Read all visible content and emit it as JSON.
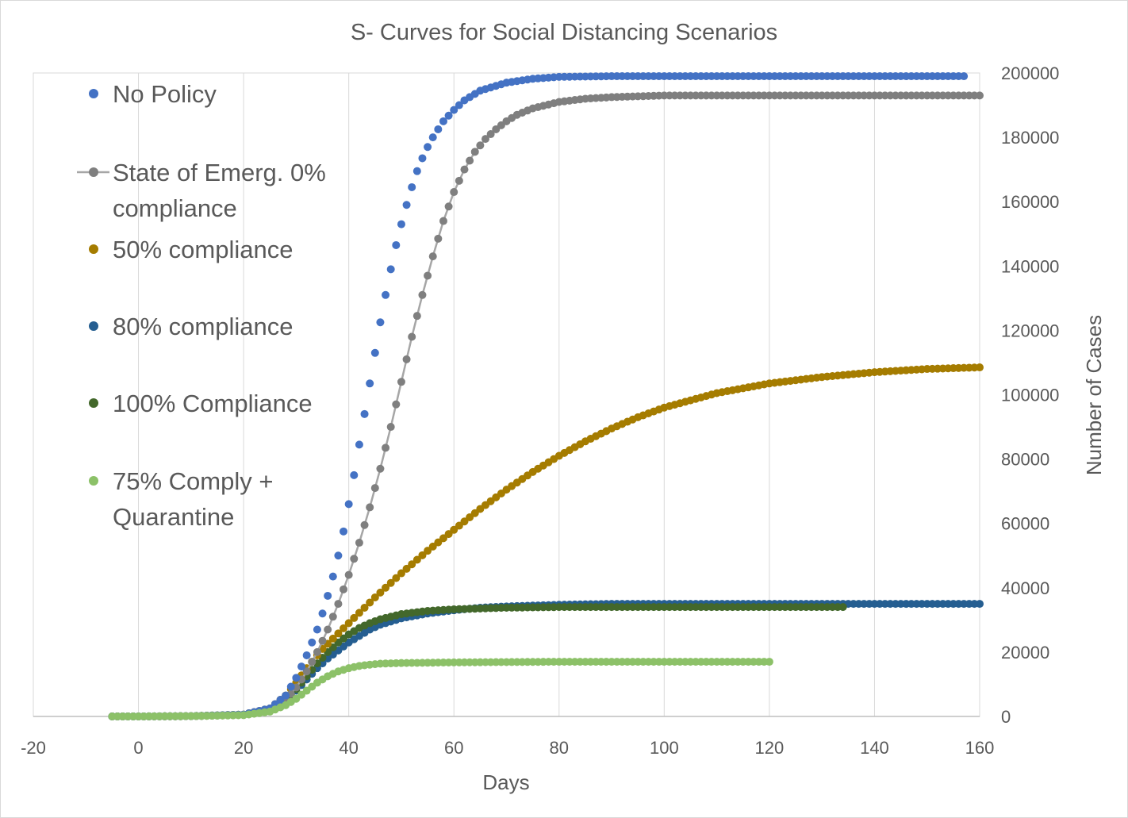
{
  "chart_data": {
    "type": "scatter",
    "title": "S- Curves for Social Distancing Scenarios",
    "xlabel": "Days",
    "ylabel": "Number of Cases",
    "xlim": [
      -20,
      160
    ],
    "ylim": [
      0,
      200000
    ],
    "x_ticks": [
      "-20",
      "0",
      "20",
      "40",
      "60",
      "80",
      "100",
      "120",
      "140",
      "160"
    ],
    "y_ticks": [
      "0",
      "20000",
      "40000",
      "60000",
      "80000",
      "100000",
      "120000",
      "140000",
      "160000",
      "180000",
      "200000"
    ],
    "y_axis_side": "right",
    "grid": "vertical gridlines",
    "legend_position": "top-left, inside plot",
    "series": [
      {
        "name": "No Policy",
        "color": "#4472C4",
        "line": false,
        "x": [
          -5,
          0,
          10,
          20,
          25,
          28,
          30,
          32,
          34,
          35,
          36,
          37,
          38,
          39,
          40,
          41,
          42,
          43,
          44,
          45,
          46,
          47,
          48,
          49,
          50,
          51,
          52,
          53,
          54,
          55,
          56,
          58,
          60,
          62,
          65,
          70,
          75,
          80,
          90,
          100,
          110,
          120,
          130,
          140,
          150,
          157
        ],
        "y": [
          0,
          0,
          100,
          600,
          2500,
          6500,
          12000,
          19000,
          27000,
          32000,
          37500,
          43500,
          50000,
          57500,
          66000,
          75000,
          84500,
          94000,
          103500,
          113000,
          122500,
          131000,
          139000,
          146500,
          153000,
          159000,
          164500,
          169500,
          173500,
          177000,
          180000,
          185000,
          188500,
          191500,
          194500,
          197000,
          198200,
          198800,
          199000,
          199000,
          199000,
          199000,
          199000,
          199000,
          199000,
          199000
        ]
      },
      {
        "name": "State of Emerg. 0% compliance",
        "color": "#7F7F7F",
        "line": true,
        "x": [
          -5,
          0,
          10,
          20,
          25,
          28,
          30,
          32,
          34,
          36,
          38,
          40,
          42,
          44,
          46,
          48,
          50,
          52,
          54,
          56,
          58,
          60,
          62,
          64,
          66,
          68,
          70,
          72,
          75,
          80,
          85,
          90,
          100,
          110,
          120,
          130,
          140,
          150,
          160
        ],
        "y": [
          0,
          0,
          100,
          500,
          2000,
          5000,
          9000,
          14000,
          20000,
          27000,
          35000,
          44000,
          54000,
          65000,
          77000,
          90000,
          104000,
          118000,
          131000,
          143000,
          154000,
          163000,
          170000,
          175500,
          179500,
          182500,
          185000,
          187000,
          189000,
          191000,
          192000,
          192500,
          193000,
          193000,
          193000,
          193000,
          193000,
          193000,
          193000
        ]
      },
      {
        "name": "50% compliance",
        "color": "#A57C00",
        "line": false,
        "x": [
          -5,
          0,
          10,
          20,
          25,
          28,
          30,
          32,
          35,
          40,
          45,
          50,
          55,
          60,
          65,
          70,
          75,
          80,
          85,
          90,
          95,
          100,
          110,
          120,
          130,
          140,
          150,
          160
        ],
        "y": [
          0,
          0,
          100,
          600,
          2500,
          6500,
          10500,
          15000,
          21000,
          29000,
          37000,
          44500,
          51500,
          58000,
          64500,
          70500,
          76000,
          81000,
          85500,
          89500,
          93000,
          96000,
          100500,
          103500,
          105500,
          107000,
          108000,
          108500
        ]
      },
      {
        "name": "80% compliance",
        "color": "#255E91",
        "line": false,
        "x": [
          -5,
          0,
          10,
          20,
          25,
          28,
          30,
          32,
          34,
          36,
          38,
          40,
          42,
          44,
          46,
          48,
          50,
          55,
          60,
          65,
          70,
          80,
          90,
          100,
          120,
          140,
          160
        ],
        "y": [
          0,
          0,
          100,
          500,
          2000,
          5000,
          8000,
          11500,
          15000,
          18000,
          20500,
          23000,
          25000,
          27000,
          28500,
          29500,
          30500,
          32000,
          33000,
          33800,
          34200,
          34700,
          35000,
          35000,
          35000,
          35000,
          35000
        ]
      },
      {
        "name": "100% Compliance",
        "color": "#43682B",
        "line": false,
        "x": [
          -5,
          0,
          10,
          20,
          25,
          28,
          30,
          32,
          34,
          36,
          38,
          40,
          42,
          44,
          46,
          48,
          50,
          55,
          60,
          70,
          80,
          90,
          100,
          110,
          120,
          134
        ],
        "y": [
          0,
          0,
          100,
          500,
          2000,
          5000,
          8500,
          12500,
          16500,
          20000,
          23000,
          25500,
          27500,
          29000,
          30200,
          31000,
          31800,
          32800,
          33300,
          33800,
          34000,
          34000,
          34000,
          34000,
          34000,
          34000
        ]
      },
      {
        "name": "75% Comply + Quarantine",
        "color": "#8CC168",
        "line": false,
        "x": [
          -5,
          0,
          10,
          20,
          25,
          28,
          30,
          32,
          34,
          36,
          38,
          40,
          42,
          44,
          46,
          50,
          55,
          60,
          70,
          80,
          90,
          100,
          110,
          120
        ],
        "y": [
          0,
          0,
          100,
          400,
          1500,
          3500,
          5500,
          8000,
          10500,
          12500,
          14000,
          15000,
          15700,
          16100,
          16400,
          16600,
          16700,
          16800,
          16900,
          17000,
          17000,
          17000,
          17000,
          17000
        ]
      }
    ]
  }
}
